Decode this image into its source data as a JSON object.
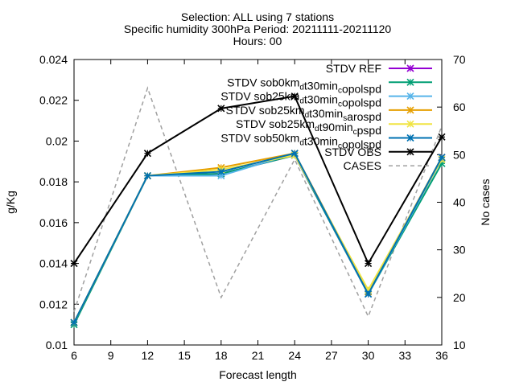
{
  "chart_data": {
    "type": "line",
    "title_lines": [
      "Selection: ALL using     7 stations",
      "Specific humidity 300hPa   Period: 20211111-20211120",
      "Hours: 00"
    ],
    "xlabel": "Forecast length",
    "ylabel": "g/Kg",
    "y2label": "No cases",
    "x": [
      6,
      12,
      18,
      24,
      30,
      36
    ],
    "xlim": [
      6,
      36
    ],
    "xticks": [
      "6",
      "9",
      "12",
      "15",
      "18",
      "21",
      "24",
      "27",
      "30",
      "33",
      "36"
    ],
    "ylim": [
      0.01,
      0.024
    ],
    "yticks": [
      "0.01",
      "0.012",
      "0.014",
      "0.016",
      "0.018",
      "0.02",
      "0.022",
      "0.024"
    ],
    "y2lim": [
      10,
      70
    ],
    "y2ticks": [
      "10",
      "20",
      "30",
      "40",
      "50",
      "60",
      "70"
    ],
    "grid": false,
    "legend_position": "top-right",
    "series": [
      {
        "name": "STDV REF",
        "color": "#9400d3",
        "dash": false,
        "marker": "x",
        "axis": "y",
        "values": [
          0.0111,
          0.0183,
          0.0184,
          0.0193,
          0.0125,
          0.0192
        ]
      },
      {
        "name": "STDV sob0km_{d}t30min_{c}opolspd",
        "color": "#009e73",
        "dash": false,
        "marker": "x",
        "axis": "y",
        "values": [
          0.011,
          0.0183,
          0.0184,
          0.0193,
          0.0125,
          0.0189
        ]
      },
      {
        "name": "STDV sob25km_{d}t30min_{c}opolspd",
        "color": "#56b4e9",
        "dash": false,
        "marker": "x",
        "axis": "y",
        "values": [
          0.0111,
          0.0183,
          0.0183,
          0.0194,
          0.0125,
          0.0191
        ]
      },
      {
        "name": "STDV sob25km_{d}t30min_{s}arospd",
        "color": "#e69f00",
        "dash": false,
        "marker": "x",
        "axis": "y",
        "values": [
          0.0111,
          0.0183,
          0.0187,
          0.0194,
          0.0126,
          0.0192
        ]
      },
      {
        "name": "STDV sob25km_{d}t90min_{c}pspd",
        "color": "#f0e442",
        "dash": false,
        "marker": "x",
        "axis": "y",
        "values": [
          0.0111,
          0.0183,
          0.0186,
          0.0193,
          0.0127,
          0.0191
        ]
      },
      {
        "name": "STDV sob50km_{d}t30min_{c}opolspd",
        "color": "#0072b2",
        "dash": false,
        "marker": "x",
        "axis": "y",
        "values": [
          0.0111,
          0.0183,
          0.0185,
          0.0194,
          0.0125,
          0.0192
        ]
      },
      {
        "name": "STDV OBS",
        "color": "#000000",
        "dash": false,
        "marker": "x",
        "axis": "y",
        "values": [
          0.014,
          0.0194,
          0.0216,
          0.0222,
          0.014,
          0.0202
        ]
      },
      {
        "name": "CASES",
        "color": "#a0a0a0",
        "dash": true,
        "marker": "none",
        "axis": "y2",
        "values": [
          17,
          64,
          20,
          49,
          16,
          56
        ]
      }
    ]
  }
}
